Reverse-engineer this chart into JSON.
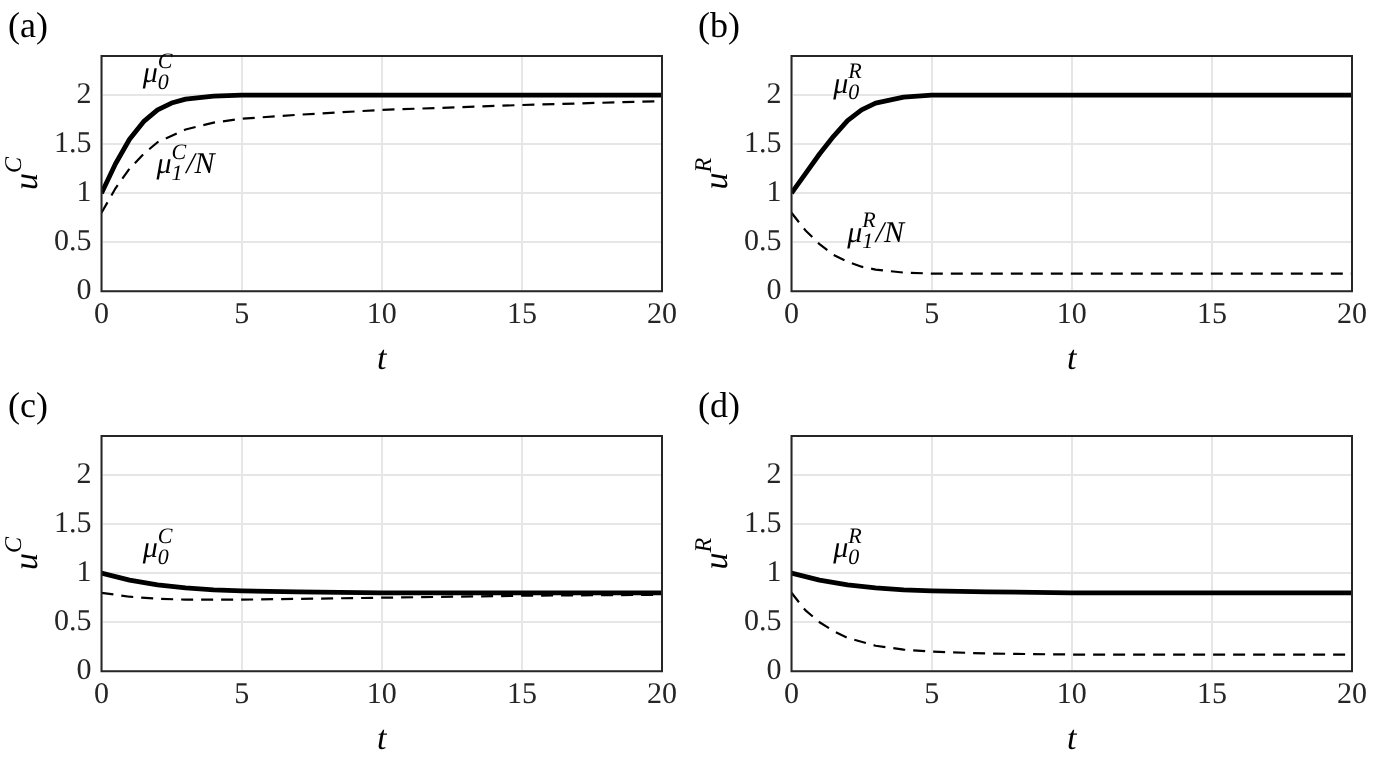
{
  "chart_data": [
    {
      "type": "line",
      "title": "(a)",
      "xlabel": "t",
      "ylabel": "u$^{C}$",
      "xlim": [
        0,
        20
      ],
      "xticks": [
        0,
        5,
        10,
        15,
        20
      ],
      "ylim": [
        0,
        2.4
      ],
      "yticks": [
        0,
        0.5,
        1,
        1.5,
        2
      ],
      "grid": true,
      "series": [
        {
          "name": "μ$_{0}$$^{C}$",
          "color": "#000000",
          "line_style": "solid",
          "x": [
            0,
            0.5,
            1,
            1.5,
            2,
            2.5,
            3,
            4,
            5,
            7,
            20
          ],
          "values": [
            1,
            1.3,
            1.55,
            1.73,
            1.85,
            1.92,
            1.96,
            1.99,
            2,
            2,
            2
          ]
        },
        {
          "name": "μ$_{1}$$^{C}$/N",
          "color": "#000000",
          "line_style": "dashed",
          "x": [
            0,
            0.5,
            1,
            1.5,
            2,
            3,
            4,
            5,
            7,
            10,
            15,
            20
          ],
          "values": [
            0.8,
            1.05,
            1.25,
            1.4,
            1.52,
            1.65,
            1.72,
            1.76,
            1.8,
            1.85,
            1.9,
            1.94
          ]
        }
      ]
    },
    {
      "type": "line",
      "title": "(b)",
      "xlabel": "t",
      "ylabel": "u$^{R}$",
      "xlim": [
        0,
        20
      ],
      "xticks": [
        0,
        5,
        10,
        15,
        20
      ],
      "ylim": [
        0,
        2.4
      ],
      "yticks": [
        0,
        0.5,
        1,
        1.5,
        2
      ],
      "grid": true,
      "series": [
        {
          "name": "μ$_{0}$$^{R}$",
          "color": "#000000",
          "line_style": "solid",
          "x": [
            0,
            0.5,
            1,
            1.5,
            2,
            2.5,
            3,
            4,
            5,
            7,
            20
          ],
          "values": [
            1,
            1.2,
            1.4,
            1.58,
            1.74,
            1.85,
            1.92,
            1.98,
            2,
            2,
            2
          ]
        },
        {
          "name": "μ$_{1}$$^{R}$/N",
          "color": "#000000",
          "line_style": "dashed",
          "x": [
            0,
            0.5,
            1,
            1.5,
            2,
            2.5,
            3,
            4,
            5,
            20
          ],
          "values": [
            0.8,
            0.62,
            0.48,
            0.37,
            0.3,
            0.25,
            0.22,
            0.19,
            0.18,
            0.18
          ]
        }
      ]
    },
    {
      "type": "line",
      "title": "(c)",
      "xlabel": "t",
      "ylabel": "u$^{C}$",
      "xlim": [
        0,
        20
      ],
      "xticks": [
        0,
        5,
        10,
        15,
        20
      ],
      "ylim": [
        0,
        2.4
      ],
      "yticks": [
        0,
        0.5,
        1,
        1.5,
        2
      ],
      "grid": true,
      "series": [
        {
          "name": "μ$_{0}$$^{C}$",
          "color": "#000000",
          "line_style": "solid",
          "x": [
            0,
            1,
            2,
            3,
            4,
            5,
            7,
            10,
            20
          ],
          "values": [
            1,
            0.93,
            0.88,
            0.85,
            0.83,
            0.82,
            0.81,
            0.8,
            0.8
          ]
        },
        {
          "color": "#000000",
          "line_style": "dashed",
          "x": [
            0,
            1,
            2,
            3,
            5,
            10,
            15,
            20
          ],
          "values": [
            0.8,
            0.76,
            0.74,
            0.73,
            0.73,
            0.75,
            0.77,
            0.78
          ]
        }
      ]
    },
    {
      "type": "line",
      "title": "(d)",
      "xlabel": "t",
      "ylabel": "u$^{R}$",
      "xlim": [
        0,
        20
      ],
      "xticks": [
        0,
        5,
        10,
        15,
        20
      ],
      "ylim": [
        0,
        2.4
      ],
      "yticks": [
        0,
        0.5,
        1,
        1.5,
        2
      ],
      "grid": true,
      "series": [
        {
          "name": "μ$_{0}$$^{R}$",
          "color": "#000000",
          "line_style": "solid",
          "x": [
            0,
            1,
            2,
            3,
            4,
            5,
            7,
            10,
            20
          ],
          "values": [
            1,
            0.93,
            0.88,
            0.85,
            0.83,
            0.82,
            0.81,
            0.8,
            0.8
          ]
        },
        {
          "color": "#000000",
          "line_style": "dashed",
          "x": [
            0,
            0.5,
            1,
            1.5,
            2,
            3,
            4,
            5,
            7,
            10,
            20
          ],
          "values": [
            0.8,
            0.62,
            0.5,
            0.41,
            0.34,
            0.26,
            0.22,
            0.2,
            0.18,
            0.17,
            0.17
          ]
        }
      ]
    }
  ]
}
